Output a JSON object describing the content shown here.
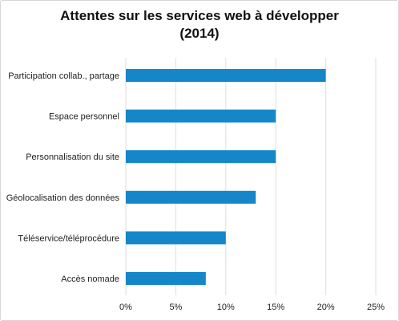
{
  "chart_data": {
    "type": "bar",
    "orientation": "horizontal",
    "title": "Attentes sur les services web à développer",
    "subtitle": "(2014)",
    "categories": [
      "Participation collab., partage",
      "Espace personnel",
      "Personnalisation du site",
      "Géolocalisation des données",
      "Téléservice/téléprocédure",
      "Accès nomade"
    ],
    "values": [
      20,
      15,
      15,
      13,
      10,
      8
    ],
    "xlim": [
      0,
      25
    ],
    "xticks": [
      "0%",
      "5%",
      "10%",
      "15%",
      "20%",
      "25%"
    ],
    "grid": true,
    "bar_color": "#1587c8",
    "grid_color": "#dedede"
  }
}
